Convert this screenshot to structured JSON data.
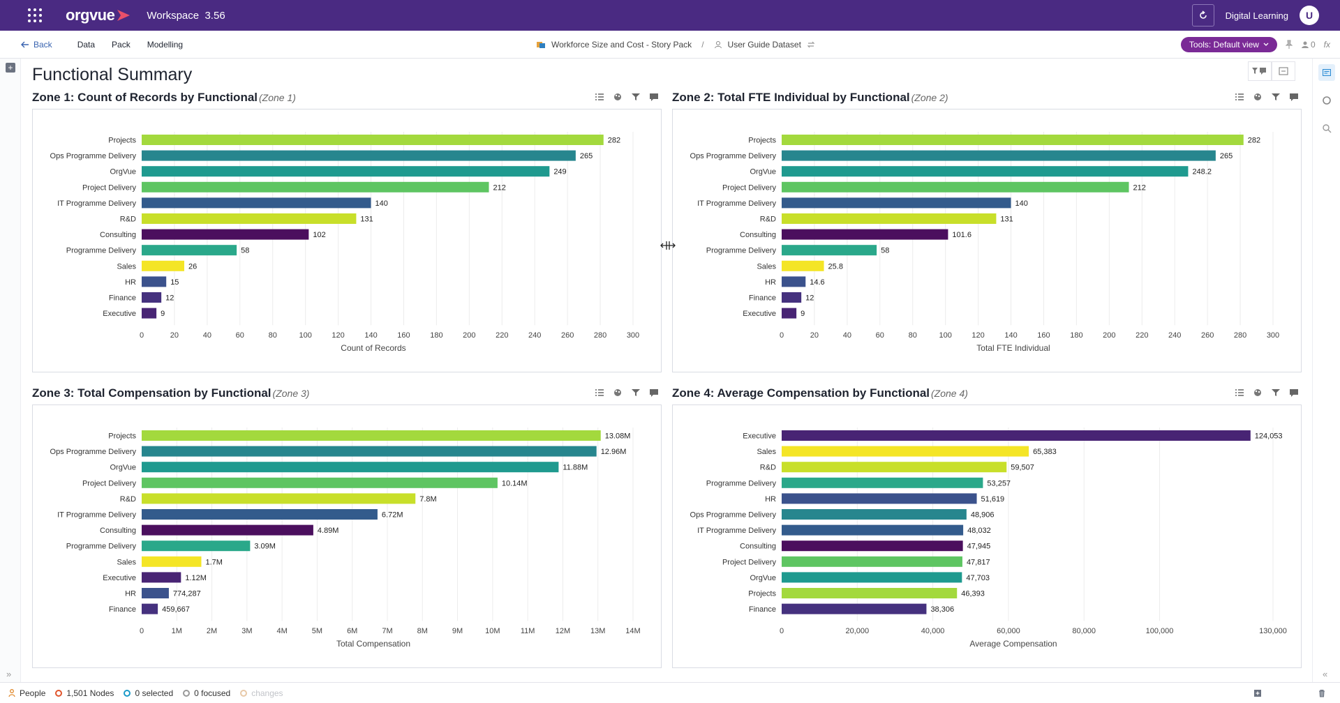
{
  "app": {
    "brand": "orgvue",
    "workspace_label": "Workspace",
    "workspace_version": "3.56",
    "user_label": "Digital Learning",
    "avatar_initial": "U"
  },
  "nav": {
    "back_label": "Back",
    "items": [
      "Data",
      "Pack",
      "Modelling"
    ],
    "story_pack": "Workforce Size and Cost - Story Pack",
    "separator": "/",
    "dataset": "User Guide Dataset",
    "tools_label": "Tools: Default view",
    "notif_count": "0",
    "fx_label": "fx"
  },
  "page": {
    "title": "Functional Summary"
  },
  "zones": [
    {
      "title": "Zone 1: Count of Records by Functional",
      "subtitle": "(Zone 1)"
    },
    {
      "title": "Zone 2: Total FTE Individual by Functional",
      "subtitle": "(Zone 2)"
    },
    {
      "title": "Zone 3: Total Compensation by Functional",
      "subtitle": "(Zone 3)"
    },
    {
      "title": "Zone 4: Average Compensation by Functional",
      "subtitle": "(Zone 4)"
    }
  ],
  "colors": {
    "Projects": "#a3d93d",
    "Ops Programme Delivery": "#27868e",
    "OrgVue": "#1f9a8f",
    "Project Delivery": "#5ec562",
    "IT Programme Delivery": "#335b8c",
    "R&D": "#c8df2a",
    "Consulting": "#4b0f5e",
    "Programme Delivery": "#2aa88a",
    "Sales": "#f4e526",
    "HR": "#3b528c",
    "Finance": "#45317e",
    "Executive": "#482474"
  },
  "chart_data": [
    {
      "type": "bar",
      "orientation": "horizontal",
      "title": "Zone 1: Count of Records by Functional",
      "xlabel": "Count of Records",
      "xlim": [
        0,
        300
      ],
      "xticks": [
        0,
        20,
        40,
        60,
        80,
        100,
        120,
        140,
        160,
        180,
        200,
        220,
        240,
        260,
        280,
        300
      ],
      "xtick_labels": [
        "0",
        "20",
        "40",
        "60",
        "80",
        "100",
        "120",
        "140",
        "160",
        "180",
        "200",
        "220",
        "240",
        "260",
        "280",
        "300"
      ],
      "categories": [
        "Projects",
        "Ops Programme Delivery",
        "OrgVue",
        "Project Delivery",
        "IT Programme Delivery",
        "R&D",
        "Consulting",
        "Programme Delivery",
        "Sales",
        "HR",
        "Finance",
        "Executive"
      ],
      "values": [
        282,
        265,
        249,
        212,
        140,
        131,
        102,
        58,
        26,
        15,
        12,
        9
      ],
      "value_labels": [
        "282",
        "265",
        "249",
        "212",
        "140",
        "131",
        "102",
        "58",
        "26",
        "15",
        "12",
        "9"
      ]
    },
    {
      "type": "bar",
      "orientation": "horizontal",
      "title": "Zone 2: Total FTE Individual by Functional",
      "xlabel": "Total FTE Individual",
      "xlim": [
        0,
        300
      ],
      "xticks": [
        0,
        20,
        40,
        60,
        80,
        100,
        120,
        140,
        160,
        180,
        200,
        220,
        240,
        260,
        280,
        300
      ],
      "xtick_labels": [
        "0",
        "20",
        "40",
        "60",
        "80",
        "100",
        "120",
        "140",
        "160",
        "180",
        "200",
        "220",
        "240",
        "260",
        "280",
        "300"
      ],
      "categories": [
        "Projects",
        "Ops Programme Delivery",
        "OrgVue",
        "Project Delivery",
        "IT Programme Delivery",
        "R&D",
        "Consulting",
        "Programme Delivery",
        "Sales",
        "HR",
        "Finance",
        "Executive"
      ],
      "values": [
        282,
        265,
        248.2,
        212,
        140,
        131,
        101.6,
        58,
        25.8,
        14.6,
        12,
        9
      ],
      "value_labels": [
        "282",
        "265",
        "248.2",
        "212",
        "140",
        "131",
        "101.6",
        "58",
        "25.8",
        "14.6",
        "12",
        "9"
      ]
    },
    {
      "type": "bar",
      "orientation": "horizontal",
      "title": "Zone 3: Total Compensation by Functional",
      "xlabel": "Total Compensation",
      "xlim": [
        0,
        14000000
      ],
      "xticks": [
        0,
        1000000,
        2000000,
        3000000,
        4000000,
        5000000,
        6000000,
        7000000,
        8000000,
        9000000,
        10000000,
        11000000,
        12000000,
        13000000,
        14000000
      ],
      "xtick_labels": [
        "0",
        "1M",
        "2M",
        "3M",
        "4M",
        "5M",
        "6M",
        "7M",
        "8M",
        "9M",
        "10M",
        "11M",
        "12M",
        "13M",
        "14M"
      ],
      "categories": [
        "Projects",
        "Ops Programme Delivery",
        "OrgVue",
        "Project Delivery",
        "R&D",
        "IT Programme Delivery",
        "Consulting",
        "Programme Delivery",
        "Sales",
        "Executive",
        "HR",
        "Finance"
      ],
      "values": [
        13080000,
        12960000,
        11880000,
        10140000,
        7800000,
        6720000,
        4890000,
        3090000,
        1700000,
        1120000,
        774287,
        459667
      ],
      "value_labels": [
        "13.08M",
        "12.96M",
        "11.88M",
        "10.14M",
        "7.8M",
        "6.72M",
        "4.89M",
        "3.09M",
        "1.7M",
        "1.12M",
        "774,287",
        "459,667"
      ]
    },
    {
      "type": "bar",
      "orientation": "horizontal",
      "title": "Zone 4: Average Compensation by Functional",
      "xlabel": "Average Compensation",
      "xlim": [
        0,
        130000
      ],
      "xticks": [
        0,
        20000,
        40000,
        60000,
        80000,
        100000,
        130000
      ],
      "xtick_labels": [
        "0",
        "20,000",
        "40,000",
        "60,000",
        "80,000",
        "100,000",
        "130,000"
      ],
      "categories": [
        "Executive",
        "Sales",
        "R&D",
        "Programme Delivery",
        "HR",
        "Ops Programme Delivery",
        "IT Programme Delivery",
        "Consulting",
        "Project Delivery",
        "OrgVue",
        "Projects",
        "Finance"
      ],
      "values": [
        124053,
        65383,
        59507,
        53257,
        51619,
        48906,
        48032,
        47945,
        47817,
        47703,
        46393,
        38306
      ],
      "value_labels": [
        "124,053",
        "65,383",
        "59,507",
        "53,257",
        "51,619",
        "48,906",
        "48,032",
        "47,945",
        "47,817",
        "47,703",
        "46,393",
        "38,306"
      ]
    }
  ],
  "status": {
    "people_label": "People",
    "nodes_label": "1,501 Nodes",
    "selected_label": "0 selected",
    "focused_label": "0 focused",
    "changes_label": "changes"
  }
}
